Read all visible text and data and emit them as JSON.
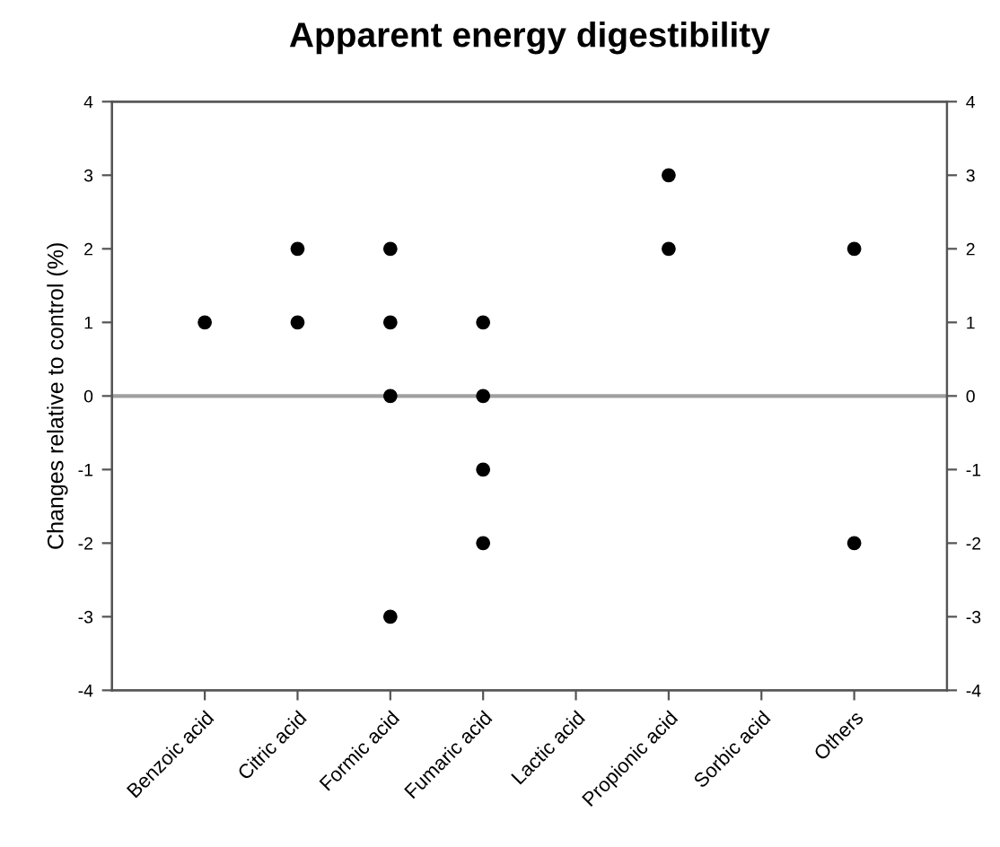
{
  "chart_data": {
    "type": "scatter",
    "title": "Apparent energy digestibility",
    "ylabel": "Changes relative to control (%)",
    "categories": [
      "Benzoic acid",
      "Citric acid",
      "Formic acid",
      "Fumaric acid",
      "Lactic acid",
      "Propionic acid",
      "Sorbic acid",
      "Others"
    ],
    "series": [
      {
        "color": "#000000",
        "x": [
          "Benzoic acid",
          "Citric acid",
          "Citric acid",
          "Formic acid",
          "Formic acid",
          "Formic acid",
          "Formic acid",
          "Fumaric acid",
          "Fumaric acid",
          "Fumaric acid",
          "Fumaric acid",
          "Propionic acid",
          "Propionic acid",
          "Others",
          "Others"
        ],
        "values": [
          1,
          2,
          1,
          2,
          1,
          0,
          -3,
          1,
          0,
          -1,
          -2,
          3,
          2,
          2,
          -2
        ]
      }
    ],
    "ylim": [
      -4,
      4
    ],
    "yticks": [
      -4,
      -3,
      -2,
      -1,
      0,
      1,
      2,
      3,
      4
    ],
    "y2lim": [
      -4,
      4
    ],
    "y2ticks": [
      -4,
      -3,
      -2,
      -1,
      0,
      1,
      2,
      3,
      4
    ],
    "ref_lines": [
      {
        "axis": "y",
        "value": 0,
        "color": "#a0a0a0",
        "line_style": "solid"
      }
    ],
    "marker": "circle",
    "grid": false,
    "legend": false
  }
}
